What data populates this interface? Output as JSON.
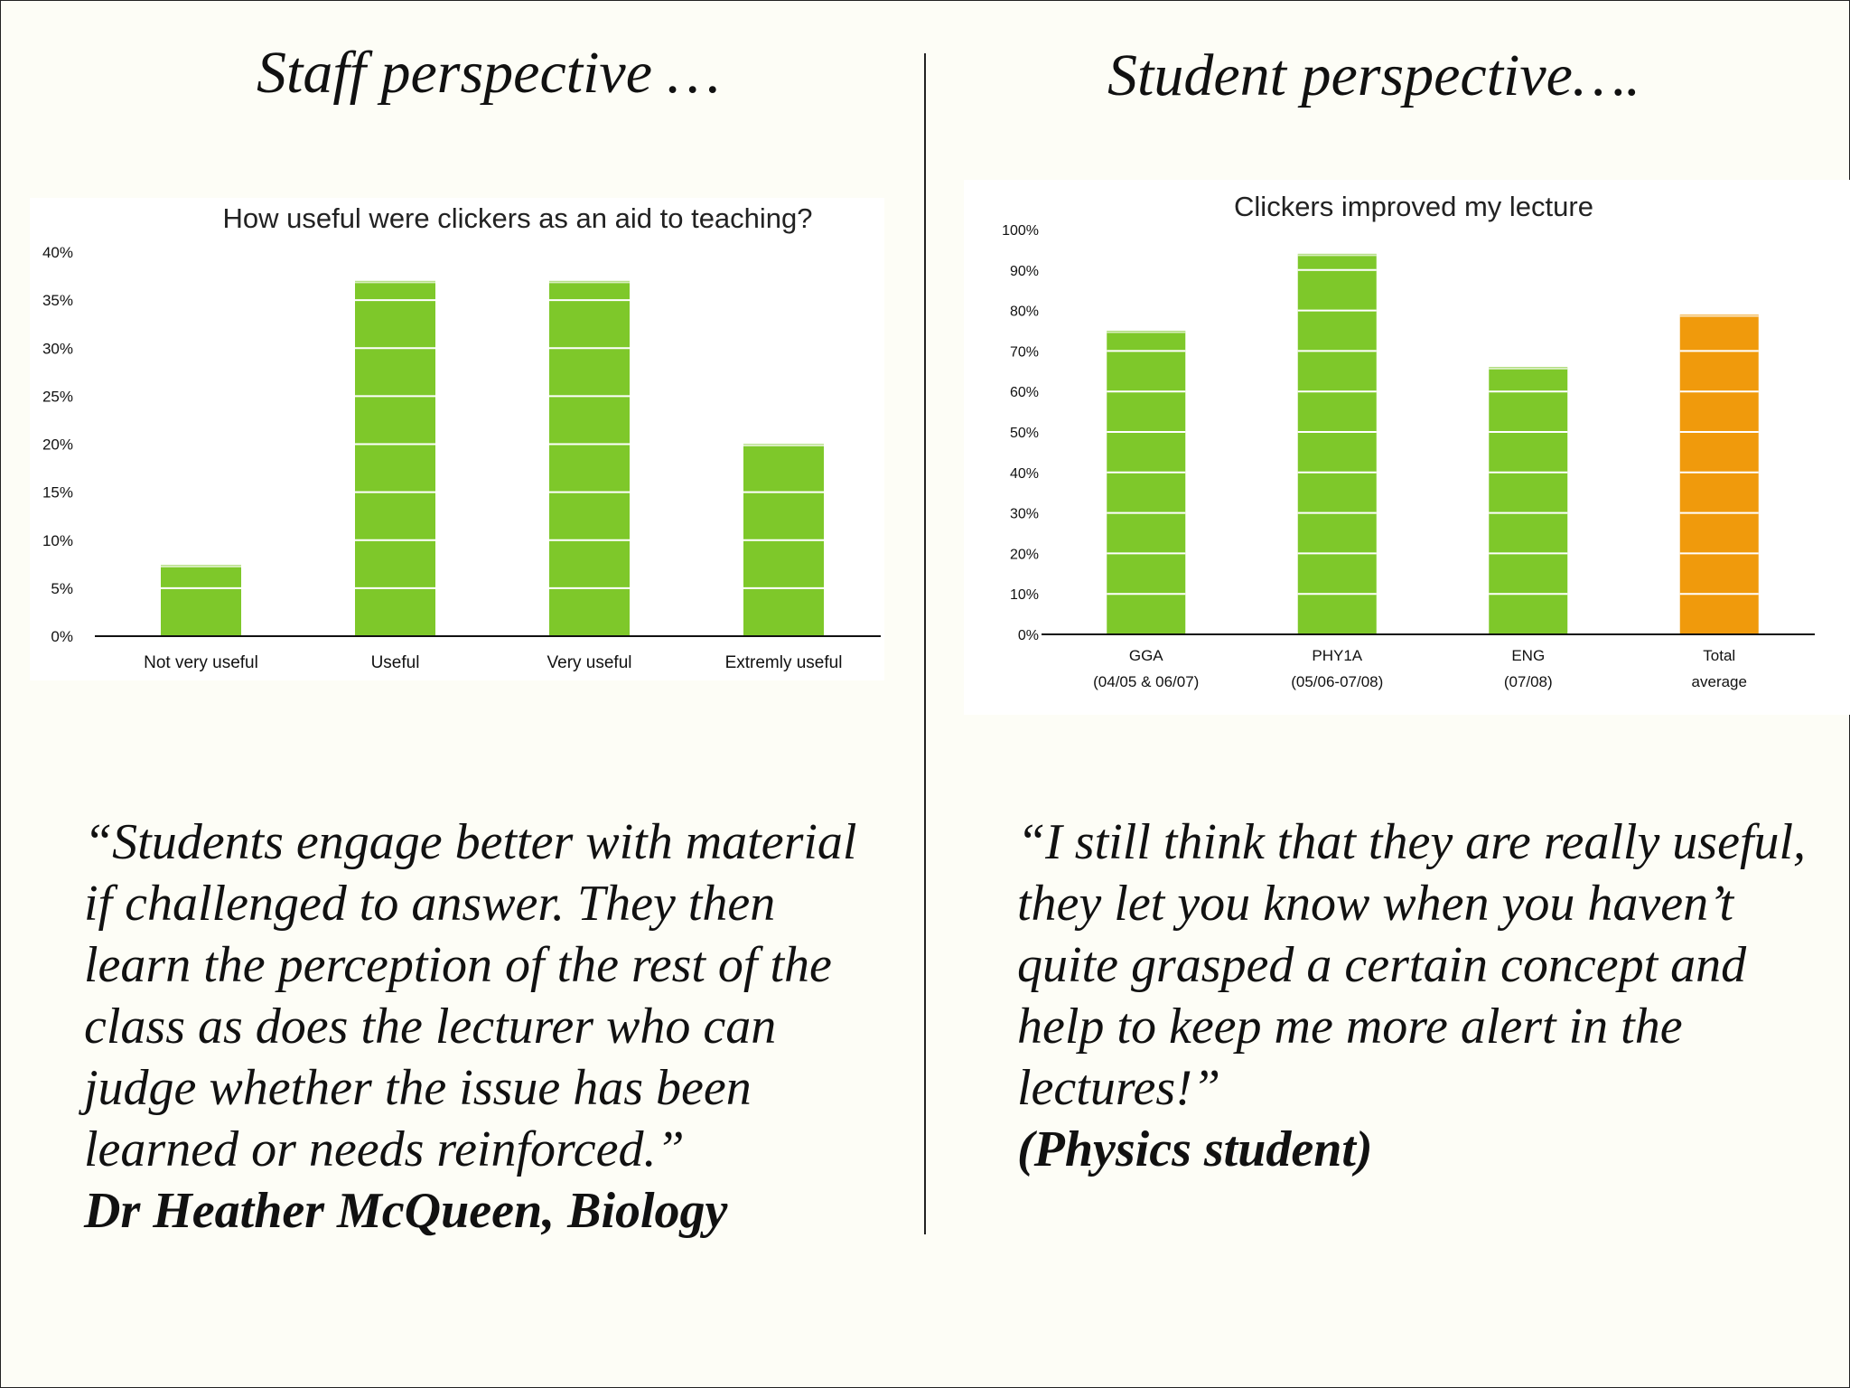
{
  "slide": {
    "staff_heading": "Staff perspective …",
    "student_heading": "Student perspective….",
    "staff_quote": "“Students engage better with material if challenged to answer. They then learn the perception of the rest of the class as does the lecturer who can judge whether the issue has been learned or needs reinforced.”",
    "staff_attribution": "Dr Heather McQueen, Biology",
    "student_quote": "“I still think that they are really useful, they let you know when you haven’t quite grasped a certain concept and help to keep me more alert in the lectures!”",
    "student_attribution": "(Physics student)"
  },
  "chart_data": [
    {
      "type": "bar",
      "title": "How useful were clickers as an aid to teaching?",
      "categories": [
        "Not very useful",
        "Useful",
        "Very useful",
        "Extremly useful"
      ],
      "values": [
        7.4,
        37.0,
        37.0,
        20.0
      ],
      "bar_colors": [
        "#7ec82a",
        "#7ec82a",
        "#7ec82a",
        "#7ec82a"
      ],
      "ylim": [
        0,
        40
      ],
      "yticks": [
        0,
        5,
        10,
        15,
        20,
        25,
        30,
        35,
        40
      ],
      "ytick_labels": [
        "0%",
        "5%",
        "10%",
        "15%",
        "20%",
        "25%",
        "30%",
        "35%",
        "40%"
      ],
      "xlabel": "",
      "ylabel": "",
      "grid": "white bands on bars"
    },
    {
      "type": "bar",
      "title": "Clickers improved my lecture",
      "categories": [
        [
          "GGA",
          "(04/05 & 06/07)"
        ],
        [
          "PHY1A",
          "(05/06-07/08)"
        ],
        [
          "ENG",
          "(07/08)"
        ],
        [
          "Total",
          "average"
        ]
      ],
      "values": [
        75,
        94,
        66,
        79
      ],
      "bar_colors": [
        "#7ec82a",
        "#7ec82a",
        "#7ec82a",
        "#f09a0c"
      ],
      "ylim": [
        0,
        100
      ],
      "yticks": [
        0,
        10,
        20,
        30,
        40,
        50,
        60,
        70,
        80,
        90,
        100
      ],
      "ytick_labels": [
        "0%",
        "10%",
        "20%",
        "30%",
        "40%",
        "50%",
        "60%",
        "70%",
        "80%",
        "90%",
        "100%"
      ],
      "xlabel": "",
      "ylabel": "",
      "grid": "white bands on bars"
    }
  ]
}
